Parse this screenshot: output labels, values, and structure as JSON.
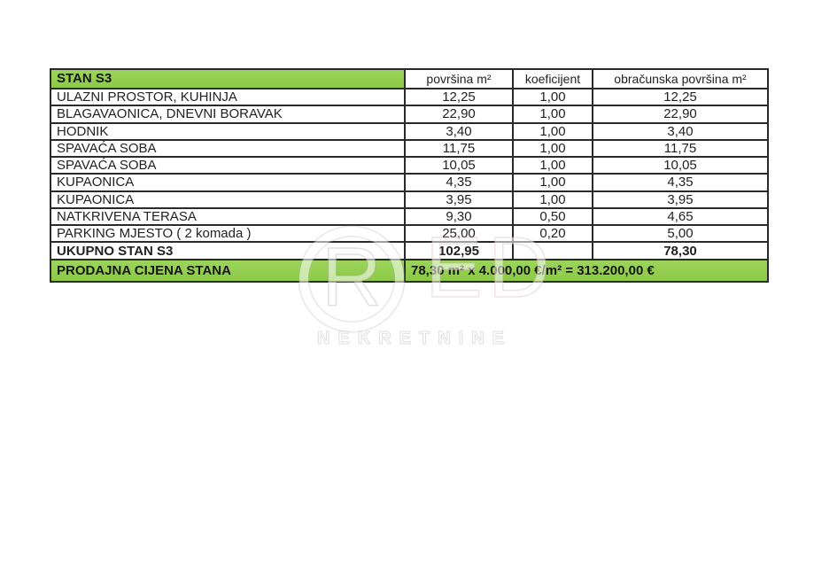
{
  "colors": {
    "header_green": "#92d050",
    "border": "#2a2a2a",
    "text": "#222222"
  },
  "watermark": {
    "letter_r": "R",
    "letters_ed": "ED",
    "subtitle": "NEKRETNINE"
  },
  "table": {
    "title": "STAN S3",
    "columns": [
      "površina m²",
      "koeficijent",
      "obračunska površina m²"
    ],
    "rows": [
      {
        "label": "ULAZNI PROSTOR, KUHINJA",
        "area": "12,25",
        "coef": "1,00",
        "calc": "12,25"
      },
      {
        "label": "BLAGAVAONICA, DNEVNI BORAVAK",
        "area": "22,90",
        "coef": "1,00",
        "calc": "22,90"
      },
      {
        "label": "HODNIK",
        "area": "3,40",
        "coef": "1,00",
        "calc": "3,40"
      },
      {
        "label": "SPAVAĆA SOBA",
        "area": "11,75",
        "coef": "1,00",
        "calc": "11,75"
      },
      {
        "label": "SPAVAĆA SOBA",
        "area": "10,05",
        "coef": "1,00",
        "calc": "10,05"
      },
      {
        "label": "KUPAONICA",
        "area": "4,35",
        "coef": "1,00",
        "calc": "4,35"
      },
      {
        "label": "KUPAONICA",
        "area": "3,95",
        "coef": "1,00",
        "calc": "3,95"
      },
      {
        "label": "NATKRIVENA TERASA",
        "area": "9,30",
        "coef": "0,50",
        "calc": "4,65"
      },
      {
        "label": "PARKING MJESTO ( 2 komada )",
        "area": "25,00",
        "coef": "0,20",
        "calc": "5,00"
      }
    ],
    "total": {
      "label": "UKUPNO STAN S3",
      "area": "102,95",
      "coef": "",
      "calc": "78,30"
    },
    "price": {
      "label": "PRODAJNA CIJENA STANA",
      "value": "78,30 m² x 4.000,00 €/m² = 313.200,00 €"
    }
  }
}
